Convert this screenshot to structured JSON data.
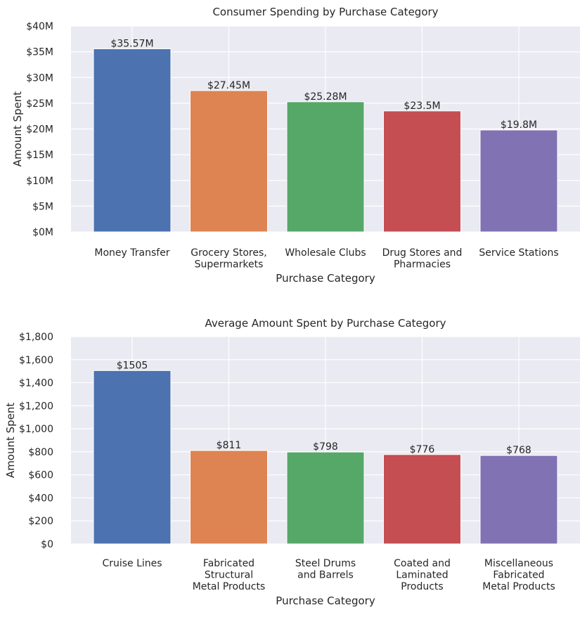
{
  "chart_data": [
    {
      "type": "bar",
      "title": "Consumer Spending by Purchase Category",
      "xlabel": "Purchase Category",
      "ylabel": "Amount Spent",
      "categories": [
        [
          "Money Transfer"
        ],
        [
          "Grocery Stores,",
          "Supermarkets"
        ],
        [
          "Wholesale Clubs"
        ],
        [
          "Drug Stores and",
          "Pharmacies"
        ],
        [
          "Service Stations"
        ]
      ],
      "values": [
        35.57,
        27.45,
        25.28,
        23.5,
        19.8
      ],
      "data_labels": [
        "$35.57M",
        "$27.45M",
        "$25.28M",
        "$23.5M",
        "$19.8M"
      ],
      "ylim": [
        0,
        40
      ],
      "yticks": [
        0,
        5,
        10,
        15,
        20,
        25,
        30,
        35,
        40
      ],
      "ytick_labels": [
        "$0M",
        "$5M",
        "$10M",
        "$15M",
        "$20M",
        "$25M",
        "$30M",
        "$35M",
        "$40M"
      ],
      "colors": [
        "#4c72b0",
        "#dd8452",
        "#55a868",
        "#c44e52",
        "#8172b3"
      ],
      "grid": true,
      "background": "#eaeaf2"
    },
    {
      "type": "bar",
      "title": "Average Amount Spent by Purchase Category",
      "xlabel": "Purchase Category",
      "ylabel": "Amount Spent",
      "categories": [
        [
          "Cruise Lines"
        ],
        [
          "Fabricated",
          "Structural",
          "Metal Products"
        ],
        [
          "Steel Drums",
          "and Barrels"
        ],
        [
          "Coated and",
          "Laminated",
          "Products"
        ],
        [
          "Miscellaneous",
          "Fabricated",
          "Metal Products"
        ]
      ],
      "values": [
        1505,
        811,
        798,
        776,
        768
      ],
      "data_labels": [
        "$1505",
        "$811",
        "$798",
        "$776",
        "$768"
      ],
      "ylim": [
        0,
        1800
      ],
      "yticks": [
        0,
        200,
        400,
        600,
        800,
        1000,
        1200,
        1400,
        1600,
        1800
      ],
      "ytick_labels": [
        "$0",
        "$200",
        "$400",
        "$600",
        "$800",
        "$1,000",
        "$1,200",
        "$1,400",
        "$1,600",
        "$1,800"
      ],
      "colors": [
        "#4c72b0",
        "#dd8452",
        "#55a868",
        "#c44e52",
        "#8172b3"
      ],
      "grid": true,
      "background": "#eaeaf2"
    }
  ]
}
